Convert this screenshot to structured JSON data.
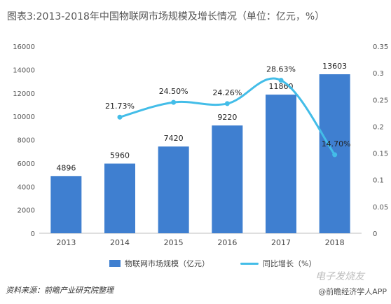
{
  "page": {
    "title": "图表3:2013-2018年中国物联网市场规模及增长情况（单位：亿元，%）",
    "source": "资料来源：前瞻产业研究院整理",
    "watermark_bottom": "@前瞻经济学人APP",
    "watermark_logo": "电子发烧友"
  },
  "chart_data": {
    "type": "bar",
    "categories": [
      "2013",
      "2014",
      "2015",
      "2016",
      "2017",
      "2018"
    ],
    "series": [
      {
        "name": "物联网市场规模（亿元）",
        "type": "bar",
        "axis": "left",
        "values": [
          4896,
          5960,
          7420,
          9220,
          11860,
          13603
        ],
        "labels": [
          "4896",
          "5960",
          "7420",
          "9220",
          "11860",
          "13603"
        ],
        "color": "#3f7fd0"
      },
      {
        "name": "同比增长（%）",
        "type": "line",
        "axis": "right",
        "values": [
          null,
          0.2173,
          0.245,
          0.2426,
          0.2863,
          0.147
        ],
        "labels": [
          "",
          "21.73%",
          "24.50%",
          "24.26%",
          "28.63%",
          "14.70%"
        ],
        "color": "#43bde8"
      }
    ],
    "left_axis": {
      "ylim": [
        0,
        16000
      ],
      "ticks": [
        "0",
        "2000",
        "4000",
        "6000",
        "8000",
        "10000",
        "12000",
        "14000",
        "16000"
      ]
    },
    "right_axis": {
      "ylim": [
        0,
        0.35
      ],
      "ticks": [
        "0",
        "0.05",
        "0.1",
        "0.15",
        "0.2",
        "0.25",
        "0.3",
        "0.35"
      ]
    },
    "grid": false,
    "legend": "bottom"
  }
}
